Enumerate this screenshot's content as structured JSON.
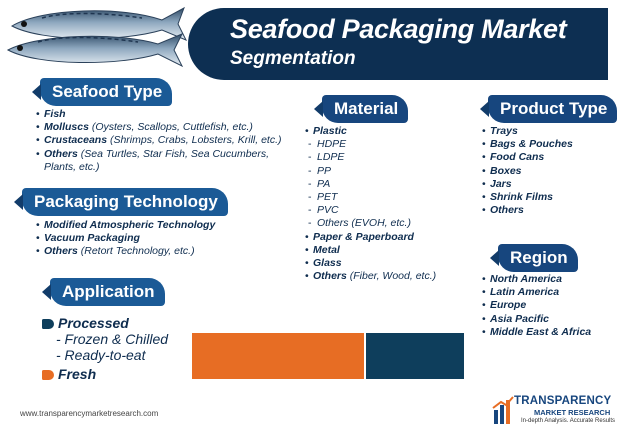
{
  "title": {
    "line1": "Seafood Packaging Market",
    "line2": "Segmentation"
  },
  "colors": {
    "navy": "#0d2f52",
    "blue": "#1b5a96",
    "orange": "#e76d24",
    "teal": "#0e3e5c"
  },
  "seafood_type": {
    "header": "Seafood Type",
    "items": [
      {
        "name": "Fish",
        "detail": ""
      },
      {
        "name": "Molluscs",
        "detail": " (Oysters, Scallops, Cuttlefish, etc.)"
      },
      {
        "name": "Crustaceans",
        "detail": " (Shrimps, Crabs, Lobsters, Krill, etc.)"
      },
      {
        "name": "Others",
        "detail": " (Sea Turtles, Star Fish, Sea Cucumbers, Plants, etc.)"
      }
    ]
  },
  "packaging_technology": {
    "header": "Packaging Technology",
    "items": [
      {
        "name": "Modified Atmospheric Technology",
        "detail": ""
      },
      {
        "name": "Vacuum Packaging",
        "detail": ""
      },
      {
        "name": "Others",
        "detail": " (Retort Technology, etc.)"
      }
    ]
  },
  "application": {
    "header": "Application",
    "processed": "Processed",
    "processed_subs": [
      "- Frozen & Chilled",
      "- Ready-to-eat"
    ],
    "fresh": "Fresh"
  },
  "material": {
    "header": "Material",
    "plastic": "Plastic",
    "plastic_subs": [
      "HDPE",
      "LDPE",
      "PP",
      "PA",
      "PET",
      "PVC",
      "Others (EVOH, etc.)"
    ],
    "others": [
      {
        "name": "Paper & Paperboard",
        "detail": ""
      },
      {
        "name": "Metal",
        "detail": ""
      },
      {
        "name": "Glass",
        "detail": ""
      },
      {
        "name": "Others",
        "detail": " (Fiber, Wood, etc.)"
      }
    ]
  },
  "product_type": {
    "header": "Product Type",
    "items": [
      "Trays",
      "Bags & Pouches",
      "Food Cans",
      "Boxes",
      "Jars",
      "Shrink Films",
      "Others"
    ]
  },
  "region": {
    "header": "Region",
    "items": [
      "North America",
      "Latin America",
      "Europe",
      "Asia Pacific",
      "Middle East & Africa"
    ]
  },
  "footer": {
    "url": "www.transparencymarketresearch.com",
    "brand_line1": "TRANSPARENCY",
    "brand_line2": "MARKET RESEARCH",
    "tagline": "In-depth Analysis. Accurate Results"
  }
}
